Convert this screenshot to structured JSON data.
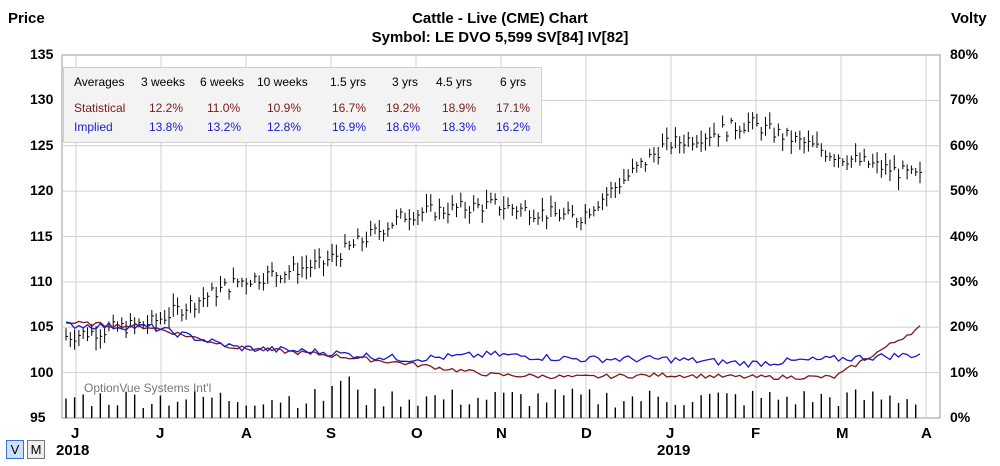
{
  "title": "Cattle - Live (CME) Chart",
  "subtitle": "Symbol: LE  DVO 5,599  SV[84]  IV[82]",
  "left_axis_title": "Price",
  "right_axis_title": "Volty",
  "price_ticks": [
    "135",
    "130",
    "125",
    "120",
    "115",
    "110",
    "105",
    "100",
    "95"
  ],
  "volty_ticks": [
    "80%",
    "70%",
    "60%",
    "50%",
    "40%",
    "30%",
    "20%",
    "10%",
    "0%"
  ],
  "month_labels": [
    "J",
    "J",
    "A",
    "S",
    "O",
    "N",
    "D",
    "J",
    "F",
    "M",
    "A"
  ],
  "year_labels": [
    "2018",
    "2019"
  ],
  "view_buttons": {
    "v": "V",
    "m": "M"
  },
  "watermark": "OptionVue Systems Int'l",
  "legend": {
    "header": [
      "Averages",
      "3 weeks",
      "6 weeks",
      "10 weeks",
      "1.5 yrs",
      "3 yrs",
      "4.5 yrs",
      "6 yrs"
    ],
    "rows": [
      {
        "name": "Statistical",
        "values": [
          "12.2%",
          "11.0%",
          "10.9%",
          "16.7%",
          "19.2%",
          "18.9%",
          "17.1%"
        ],
        "color": "#7a1a1a"
      },
      {
        "name": "Implied",
        "values": [
          "13.8%",
          "13.2%",
          "12.8%",
          "16.9%",
          "18.6%",
          "18.3%",
          "16.2%"
        ],
        "color": "#1a1acc"
      }
    ]
  },
  "chart_data": {
    "type": "line",
    "title": "Cattle - Live (CME) Chart",
    "x": [
      "2018-06",
      "2018-07",
      "2018-08",
      "2018-09",
      "2018-10",
      "2018-11",
      "2018-12",
      "2019-01",
      "2019-02",
      "2019-03",
      "2019-04"
    ],
    "price_axis": {
      "label": "Price",
      "ylim": [
        95,
        135
      ]
    },
    "volty_axis": {
      "label": "Volty",
      "ylim": [
        0,
        80
      ]
    },
    "series": [
      {
        "name": "Price",
        "color": "#000000",
        "values": [
          104,
          105.5,
          110,
          112,
          117.5,
          118.5,
          117,
          125,
          127.5,
          124,
          121.5
        ]
      },
      {
        "name": "Statistical",
        "color": "#7a1a1a",
        "values": [
          21,
          20,
          15.5,
          14,
          12,
          9.5,
          9,
          9.5,
          9,
          9,
          20
        ]
      },
      {
        "name": "Implied",
        "color": "#1a1acc",
        "values": [
          20.5,
          20,
          15.5,
          14.5,
          13,
          14,
          13,
          13,
          12,
          13,
          14
        ]
      }
    ]
  }
}
